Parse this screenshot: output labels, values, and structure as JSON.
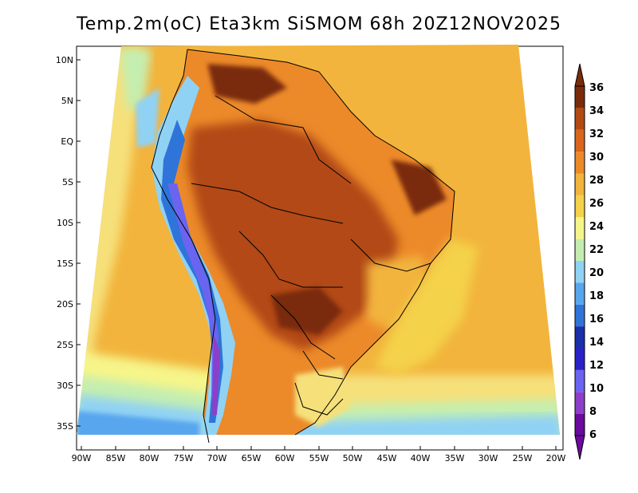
{
  "title": "Temp.2m(oC) Eta3km SiSMOM 68h 20Z12NOV2025",
  "lat_labels": [
    "10N",
    "5N",
    "EQ",
    "5S",
    "10S",
    "15S",
    "20S",
    "25S",
    "30S",
    "35S"
  ],
  "lon_labels": [
    "90W",
    "85W",
    "80W",
    "75W",
    "70W",
    "65W",
    "60W",
    "55W",
    "50W",
    "45W",
    "40W",
    "35W",
    "30W",
    "25W",
    "20W"
  ],
  "colorbar": {
    "labels": [
      "6",
      "8",
      "10",
      "12",
      "14",
      "16",
      "18",
      "20",
      "22",
      "24",
      "26",
      "28",
      "30",
      "32",
      "34",
      "36"
    ],
    "colors": [
      "#6a0a9e",
      "#8c3fc9",
      "#6a64f0",
      "#2a22c8",
      "#1a2fa8",
      "#2f74d8",
      "#58a6ee",
      "#90d2f4",
      "#c4eeb0",
      "#f6f58a",
      "#f4d24a",
      "#f2b43c",
      "#ec8a2a",
      "#d8661c",
      "#b24a12",
      "#7a2c0a"
    ]
  }
}
